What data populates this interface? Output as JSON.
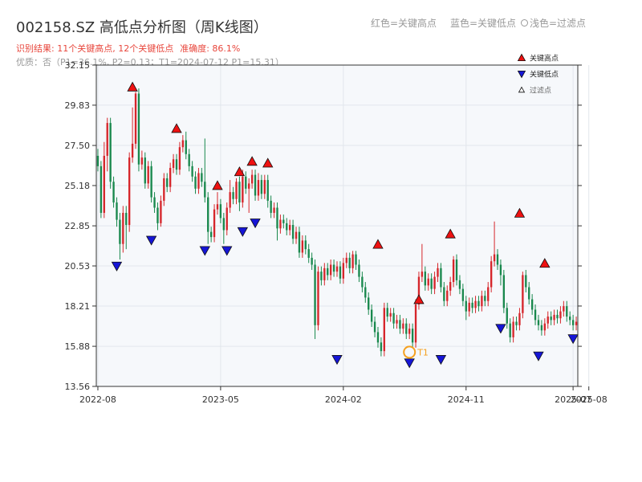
{
  "title": "002158.SZ 高低点分析图（周K线图）",
  "top_legend": {
    "red": "红色=关键高点",
    "blue": "蓝色=关键低点",
    "gray": "浅色=过滤点"
  },
  "summary": {
    "result": "识别结果: 11个关键高点, 12个关键低点",
    "accuracy": "准确度: 86.1%"
  },
  "quality_line": "优质：否（P1=36.1%, P2=0.13；T1=2024-07-12 P1=15.31）",
  "colors": {
    "up": "#d6262b",
    "down": "#19884d",
    "high_marker": "#ee1111",
    "low_marker": "#1515d6",
    "t1_ring": "#f5a01f",
    "plot_bg": "#f6f8fb",
    "grid": "#e2e6ec"
  },
  "chart_data": {
    "type": "candlestick",
    "title": "002158.SZ 高低点分析图（周K线图）",
    "ylim": [
      13.56,
      32.15
    ],
    "y_ticks": [
      "13.56",
      "15.88",
      "18.21",
      "20.53",
      "22.85",
      "25.18",
      "27.50",
      "29.83",
      "32.15"
    ],
    "x_ticks": [
      "2022-08",
      "2023-05",
      "2024-02",
      "2024-11",
      "2025-07",
      "2025-08"
    ],
    "x_tick_pos": [
      0,
      39,
      78,
      117,
      151,
      156
    ],
    "legend": [
      {
        "marker": "high",
        "label": "关键高点"
      },
      {
        "marker": "low",
        "label": "关键低点"
      },
      {
        "marker": "filtered",
        "label": "过滤点"
      }
    ],
    "candles": [
      [
        26.9,
        26.3,
        27.3,
        26.0
      ],
      [
        26.3,
        23.6,
        26.6,
        23.3
      ],
      [
        23.6,
        26.9,
        27.7,
        23.3
      ],
      [
        26.9,
        28.8,
        29.1,
        26.0
      ],
      [
        28.8,
        25.4,
        29.1,
        25.0
      ],
      [
        25.4,
        24.2,
        25.7,
        23.9
      ],
      [
        24.2,
        23.2,
        24.5,
        22.8
      ],
      [
        23.2,
        21.8,
        23.6,
        20.9
      ],
      [
        21.8,
        23.6,
        24.0,
        21.3
      ],
      [
        23.6,
        22.9,
        24.0,
        21.5
      ],
      [
        22.9,
        26.8,
        27.1,
        22.5
      ],
      [
        26.8,
        27.6,
        29.7,
        26.5
      ],
      [
        27.6,
        30.5,
        30.6,
        27.3
      ],
      [
        30.5,
        26.4,
        30.8,
        26.0
      ],
      [
        26.4,
        26.8,
        27.2,
        26.1
      ],
      [
        26.8,
        25.3,
        27.1,
        25.0
      ],
      [
        25.3,
        26.3,
        26.6,
        25.0
      ],
      [
        26.3,
        24.5,
        26.6,
        24.2
      ],
      [
        24.5,
        23.9,
        24.8,
        23.6
      ],
      [
        23.9,
        23.0,
        24.2,
        22.6
      ],
      [
        23.0,
        24.3,
        24.6,
        22.8
      ],
      [
        24.3,
        25.6,
        25.9,
        24.0
      ],
      [
        25.6,
        25.1,
        25.9,
        24.8
      ],
      [
        25.1,
        26.2,
        26.5,
        24.8
      ],
      [
        26.2,
        26.7,
        27.0,
        25.9
      ],
      [
        26.7,
        26.1,
        27.0,
        25.8
      ],
      [
        26.1,
        27.4,
        27.7,
        25.8
      ],
      [
        27.4,
        27.8,
        28.1,
        27.1
      ],
      [
        27.8,
        27.0,
        28.3,
        26.7
      ],
      [
        27.0,
        26.3,
        27.3,
        26.0
      ],
      [
        26.3,
        25.7,
        26.6,
        25.4
      ],
      [
        25.7,
        25.0,
        26.0,
        24.7
      ],
      [
        25.0,
        25.9,
        26.2,
        24.7
      ],
      [
        25.9,
        25.4,
        26.2,
        25.1
      ],
      [
        25.4,
        24.5,
        27.9,
        24.2
      ],
      [
        24.5,
        22.5,
        24.8,
        21.8
      ],
      [
        22.5,
        22.2,
        22.8,
        21.9
      ],
      [
        22.2,
        23.8,
        24.1,
        21.9
      ],
      [
        23.8,
        24.1,
        24.8,
        23.5
      ],
      [
        24.1,
        23.3,
        24.4,
        23.0
      ],
      [
        23.3,
        22.6,
        23.6,
        21.8
      ],
      [
        22.6,
        23.9,
        24.2,
        22.3
      ],
      [
        23.9,
        24.8,
        25.5,
        23.6
      ],
      [
        24.8,
        24.4,
        25.1,
        24.1
      ],
      [
        24.4,
        25.4,
        25.6,
        24.1
      ],
      [
        25.4,
        24.2,
        25.7,
        23.7
      ],
      [
        24.2,
        25.7,
        26.1,
        23.9
      ],
      [
        25.7,
        25.0,
        26.0,
        24.7
      ],
      [
        25.0,
        25.3,
        25.6,
        23.6
      ],
      [
        25.3,
        25.8,
        26.1,
        25.0
      ],
      [
        25.8,
        24.6,
        26.1,
        24.3
      ],
      [
        24.6,
        25.5,
        25.9,
        24.3
      ],
      [
        25.5,
        24.7,
        25.8,
        24.4
      ],
      [
        24.7,
        25.5,
        25.8,
        24.4
      ],
      [
        25.5,
        24.3,
        25.8,
        23.9
      ],
      [
        24.3,
        23.6,
        24.6,
        23.3
      ],
      [
        23.6,
        23.9,
        24.2,
        23.3
      ],
      [
        23.9,
        22.7,
        24.2,
        22.0
      ],
      [
        22.7,
        23.2,
        23.5,
        22.4
      ],
      [
        23.2,
        23.0,
        23.5,
        22.7
      ],
      [
        23.0,
        22.6,
        23.3,
        22.3
      ],
      [
        22.6,
        22.9,
        23.2,
        22.3
      ],
      [
        22.9,
        22.1,
        23.2,
        21.8
      ],
      [
        22.1,
        22.5,
        22.8,
        21.8
      ],
      [
        22.5,
        21.3,
        22.8,
        21.0
      ],
      [
        21.3,
        22.0,
        22.3,
        21.0
      ],
      [
        22.0,
        21.5,
        22.3,
        21.2
      ],
      [
        21.5,
        21.0,
        21.8,
        20.7
      ],
      [
        21.0,
        20.6,
        21.3,
        20.3
      ],
      [
        20.6,
        17.1,
        20.9,
        16.3
      ],
      [
        17.1,
        20.2,
        20.5,
        16.8
      ],
      [
        20.2,
        19.7,
        20.5,
        19.4
      ],
      [
        19.7,
        20.4,
        20.7,
        19.4
      ],
      [
        20.4,
        20.0,
        20.7,
        19.7
      ],
      [
        20.0,
        20.6,
        20.9,
        19.7
      ],
      [
        20.6,
        20.2,
        20.9,
        19.9
      ],
      [
        20.2,
        20.5,
        20.8,
        19.9
      ],
      [
        20.5,
        19.8,
        20.8,
        19.5
      ],
      [
        19.8,
        20.7,
        21.0,
        19.5
      ],
      [
        20.7,
        21.0,
        21.3,
        20.4
      ],
      [
        21.0,
        20.4,
        21.3,
        20.1
      ],
      [
        20.4,
        21.2,
        21.4,
        20.1
      ],
      [
        21.2,
        20.6,
        21.4,
        20.3
      ],
      [
        20.6,
        19.9,
        20.9,
        19.6
      ],
      [
        19.9,
        19.3,
        20.2,
        19.0
      ],
      [
        19.3,
        18.7,
        19.6,
        18.4
      ],
      [
        18.7,
        18.0,
        19.0,
        17.7
      ],
      [
        18.0,
        17.3,
        18.3,
        17.0
      ],
      [
        17.3,
        16.7,
        17.6,
        16.4
      ],
      [
        16.7,
        16.1,
        17.0,
        15.8
      ],
      [
        16.1,
        15.6,
        16.4,
        15.3
      ],
      [
        15.6,
        18.1,
        18.4,
        15.3
      ],
      [
        18.1,
        17.6,
        18.4,
        17.3
      ],
      [
        17.6,
        17.8,
        18.1,
        17.3
      ],
      [
        17.8,
        17.2,
        18.1,
        16.9
      ],
      [
        17.2,
        17.4,
        17.7,
        16.9
      ],
      [
        17.4,
        16.9,
        17.7,
        16.6
      ],
      [
        16.9,
        17.2,
        17.5,
        16.6
      ],
      [
        17.2,
        16.6,
        17.5,
        16.3
      ],
      [
        16.6,
        16.9,
        17.2,
        16.3
      ],
      [
        16.9,
        16.1,
        17.2,
        15.8
      ],
      [
        16.1,
        18.3,
        18.6,
        15.8
      ],
      [
        18.3,
        19.9,
        20.2,
        18.0
      ],
      [
        19.9,
        20.2,
        21.8,
        19.6
      ],
      [
        20.2,
        19.4,
        20.5,
        19.1
      ],
      [
        19.4,
        19.8,
        20.1,
        19.1
      ],
      [
        19.8,
        19.2,
        20.1,
        18.9
      ],
      [
        19.2,
        19.9,
        20.2,
        18.9
      ],
      [
        19.9,
        20.4,
        20.7,
        19.6
      ],
      [
        20.4,
        19.3,
        20.7,
        19.0
      ],
      [
        19.3,
        18.5,
        19.6,
        18.2
      ],
      [
        18.5,
        19.1,
        19.4,
        18.2
      ],
      [
        19.1,
        19.6,
        19.9,
        18.8
      ],
      [
        19.6,
        20.9,
        21.1,
        19.3
      ],
      [
        20.9,
        19.7,
        21.2,
        19.4
      ],
      [
        19.7,
        19.2,
        20.0,
        18.9
      ],
      [
        19.2,
        18.5,
        19.5,
        18.2
      ],
      [
        18.5,
        17.9,
        18.8,
        17.4
      ],
      [
        17.9,
        18.4,
        18.7,
        17.6
      ],
      [
        18.4,
        18.1,
        18.7,
        17.8
      ],
      [
        18.1,
        18.5,
        18.8,
        17.8
      ],
      [
        18.5,
        18.2,
        18.8,
        17.9
      ],
      [
        18.2,
        18.8,
        19.1,
        17.9
      ],
      [
        18.8,
        18.5,
        19.1,
        18.2
      ],
      [
        18.5,
        19.3,
        19.6,
        18.2
      ],
      [
        19.3,
        20.8,
        21.1,
        19.0
      ],
      [
        20.8,
        21.2,
        23.1,
        20.5
      ],
      [
        21.2,
        20.6,
        21.5,
        20.3
      ],
      [
        20.6,
        20.0,
        20.9,
        19.4
      ],
      [
        20.0,
        18.1,
        20.3,
        17.8
      ],
      [
        18.1,
        17.2,
        18.4,
        16.9
      ],
      [
        17.2,
        16.4,
        17.5,
        16.1
      ],
      [
        16.4,
        17.3,
        17.6,
        16.1
      ],
      [
        17.3,
        17.1,
        17.6,
        16.8
      ],
      [
        17.1,
        17.8,
        18.1,
        16.8
      ],
      [
        17.8,
        20.0,
        20.2,
        17.5
      ],
      [
        20.0,
        19.3,
        20.3,
        19.0
      ],
      [
        19.3,
        18.6,
        19.6,
        18.3
      ],
      [
        18.6,
        18.0,
        18.9,
        17.7
      ],
      [
        18.0,
        17.4,
        18.3,
        17.1
      ],
      [
        17.4,
        17.1,
        17.7,
        16.8
      ],
      [
        17.1,
        16.8,
        17.4,
        16.5
      ],
      [
        16.8,
        17.2,
        17.5,
        16.5
      ],
      [
        17.2,
        17.6,
        17.9,
        16.9
      ],
      [
        17.6,
        17.4,
        17.9,
        17.1
      ],
      [
        17.4,
        17.7,
        18.0,
        17.1
      ],
      [
        17.7,
        17.5,
        18.0,
        17.2
      ],
      [
        17.5,
        17.9,
        18.2,
        17.2
      ],
      [
        17.9,
        18.2,
        18.5,
        17.6
      ],
      [
        18.2,
        17.6,
        18.5,
        17.3
      ],
      [
        17.6,
        17.4,
        17.9,
        17.1
      ],
      [
        17.4,
        17.1,
        17.7,
        16.8
      ],
      [
        17.1,
        17.3,
        17.6,
        16.8
      ]
    ],
    "key_highs": [
      [
        11,
        30.5
      ],
      [
        25,
        28.1
      ],
      [
        38,
        24.8
      ],
      [
        45,
        25.6
      ],
      [
        49,
        26.2
      ],
      [
        54,
        26.1
      ],
      [
        89,
        21.4
      ],
      [
        102,
        18.2
      ],
      [
        112,
        22.0
      ],
      [
        134,
        23.2
      ],
      [
        142,
        20.3
      ]
    ],
    "key_lows": [
      [
        6,
        20.9
      ],
      [
        17,
        22.4
      ],
      [
        34,
        21.8
      ],
      [
        41,
        21.8
      ],
      [
        46,
        22.9
      ],
      [
        50,
        23.4
      ],
      [
        76,
        15.5
      ],
      [
        99,
        15.3
      ],
      [
        109,
        15.5
      ],
      [
        128,
        17.3
      ],
      [
        140,
        15.7
      ],
      [
        151,
        16.7
      ]
    ],
    "t1": {
      "index": 99,
      "value": 15.31,
      "label": "T1"
    }
  }
}
